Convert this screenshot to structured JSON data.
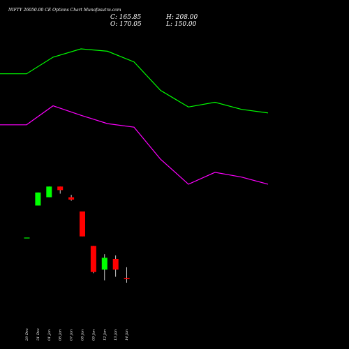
{
  "header": {
    "title": "NIFTY 26050.00 CE Options Chart Munafasutra.com",
    "close_label": "C: 165.85",
    "high_label": "H: 208.00",
    "open_label": "O: 170.05",
    "low_label": "L: 150.00"
  },
  "chart_data": {
    "type": "candlestick",
    "title": "NIFTY 26050.00 CE Options Chart Munafasutra.com",
    "xlabel": "",
    "ylabel": "",
    "categories": [
      "29 Dec",
      "31 Dec",
      "01 Jan",
      "06 Jan",
      "07 Jan",
      "08 Jan",
      "09 Jan",
      "12 Jan",
      "13 Jan",
      "14 Jan"
    ],
    "candles": [
      {
        "date": "29 Dec",
        "open": 351,
        "high": 351,
        "low": 351,
        "close": 351,
        "color": "#00ff00"
      },
      {
        "date": "31 Dec",
        "open": 378,
        "high": 389,
        "low": 378,
        "close": 389,
        "color": "#00ff00"
      },
      {
        "date": "01 Jan",
        "open": 385,
        "high": 394,
        "low": 385,
        "close": 394,
        "color": "#00ff00"
      },
      {
        "date": "06 Jan",
        "open": 394,
        "high": 394,
        "low": 388,
        "close": 391,
        "color": "#ff0000"
      },
      {
        "date": "07 Jan",
        "open": 385,
        "high": 387,
        "low": 382,
        "close": 383,
        "color": "#ff0000"
      },
      {
        "date": "08 Jan",
        "open": 373,
        "high": 373,
        "low": 352,
        "close": 352,
        "color": "#ff0000"
      },
      {
        "date": "09 Jan",
        "open": 344,
        "high": 344,
        "low": 321,
        "close": 322,
        "color": "#ff0000"
      },
      {
        "date": "12 Jan",
        "open": 324,
        "high": 337,
        "low": 315,
        "close": 334,
        "color": "#00ff00"
      },
      {
        "date": "13 Jan",
        "open": 333,
        "high": 336,
        "low": 318,
        "close": 324,
        "color": "#ff0000"
      },
      {
        "date": "14 Jan",
        "open": 317,
        "high": 326,
        "low": 313,
        "close": 316,
        "color": "#ff0000"
      }
    ],
    "upper_band": {
      "color": "#00ff00",
      "points": [
        [
          0,
          489
        ],
        [
          38,
          489
        ],
        [
          76,
          503
        ],
        [
          116,
          510
        ],
        [
          154,
          508
        ],
        [
          192,
          499
        ],
        [
          230,
          475
        ],
        [
          270,
          461
        ],
        [
          308,
          465
        ],
        [
          346,
          459
        ],
        [
          384,
          456
        ]
      ]
    },
    "lower_band": {
      "color": "#ff00ff",
      "points": [
        [
          0,
          446
        ],
        [
          38,
          446
        ],
        [
          76,
          462
        ],
        [
          116,
          454
        ],
        [
          154,
          447
        ],
        [
          192,
          444
        ],
        [
          230,
          417
        ],
        [
          270,
          396
        ],
        [
          308,
          406
        ],
        [
          346,
          402
        ],
        [
          384,
          396
        ]
      ]
    },
    "grid": false,
    "background": "#000000"
  }
}
